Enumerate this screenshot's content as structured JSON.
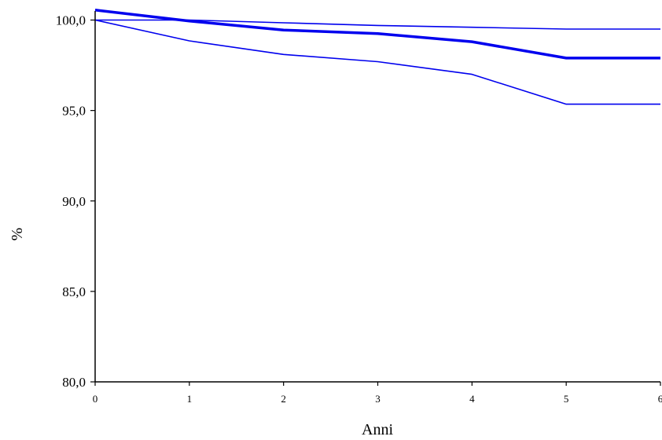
{
  "chart_data": {
    "type": "line",
    "xlabel": "Anni",
    "ylabel": "%",
    "xlim": [
      0,
      6
    ],
    "ylim": [
      80,
      100.5
    ],
    "x_ticks": [
      "0",
      "1",
      "2",
      "3",
      "4",
      "5",
      "6"
    ],
    "y_ticks": [
      "80,0",
      "85,0",
      "90,0",
      "95,0",
      "100,0"
    ],
    "grid": false,
    "legend": "none",
    "color": "#0000ee",
    "series": [
      {
        "x": [
          0,
          1,
          2,
          3,
          4,
          5,
          6
        ],
        "y": [
          100.0,
          100.0,
          99.85,
          99.7,
          99.6,
          99.5,
          99.5
        ]
      },
      {
        "x": [
          0,
          1,
          2,
          3,
          4,
          5,
          6
        ],
        "y": [
          100.55,
          99.95,
          99.45,
          99.25,
          98.8,
          97.9,
          97.9
        ],
        "emphasis": "bold"
      },
      {
        "x": [
          0,
          1,
          2,
          3,
          4,
          5,
          6
        ],
        "y": [
          100.0,
          98.85,
          98.1,
          97.7,
          97.0,
          95.35,
          95.35
        ]
      }
    ]
  }
}
